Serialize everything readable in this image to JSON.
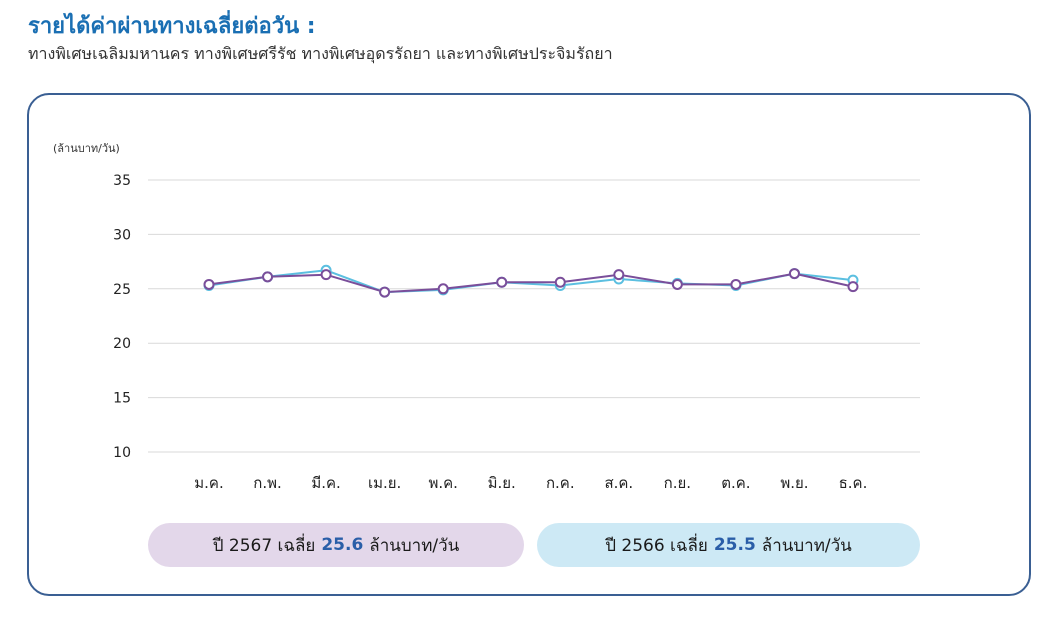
{
  "header": {
    "title": "รายได้ค่าผ่านทางเฉลี่ยต่อวัน :",
    "subtitle": "ทางพิเศษเฉลิมมหานคร ทางพิเศษศรีรัช ทางพิเศษอุดรรัถยา และทางพิเศษประจิมรัถยา"
  },
  "chart_data": {
    "type": "line",
    "ylabel": "(ล้านบาท/วัน)",
    "ylim": [
      10,
      35
    ],
    "yticks": [
      "35",
      "30",
      "25",
      "20",
      "15",
      "10"
    ],
    "categories": [
      "ม.ค.",
      "ก.พ.",
      "มี.ค.",
      "เม.ย.",
      "พ.ค.",
      "มิ.ย.",
      "ก.ค.",
      "ส.ค.",
      "ก.ย.",
      "ต.ค.",
      "พ.ย.",
      "ธ.ค."
    ],
    "grid": true,
    "series": [
      {
        "key": "y2566",
        "color": "#5bbfe0",
        "values": [
          25.3,
          26.1,
          26.7,
          24.7,
          24.9,
          25.6,
          25.3,
          25.9,
          25.5,
          25.3,
          26.4,
          25.8
        ]
      },
      {
        "key": "y2567",
        "color": "#7a4e9a",
        "values": [
          25.4,
          26.1,
          26.3,
          24.7,
          25.0,
          25.6,
          25.6,
          26.3,
          25.4,
          25.4,
          26.4,
          25.2
        ]
      }
    ]
  },
  "summary": {
    "y2567": {
      "prefix": "ปี 2567 เฉลี่ย",
      "value": "25.6",
      "unit": "ล้านบาท/วัน"
    },
    "y2566": {
      "prefix": "ปี 2566 เฉลี่ย",
      "value": "25.5",
      "unit": "ล้านบาท/วัน"
    }
  },
  "colors": {
    "title": "#1a6fb3",
    "panel_border": "#3a5f93",
    "pill_2567": "#e3d7ea",
    "pill_2566": "#cde9f5",
    "value_text": "#2a5ea8"
  }
}
